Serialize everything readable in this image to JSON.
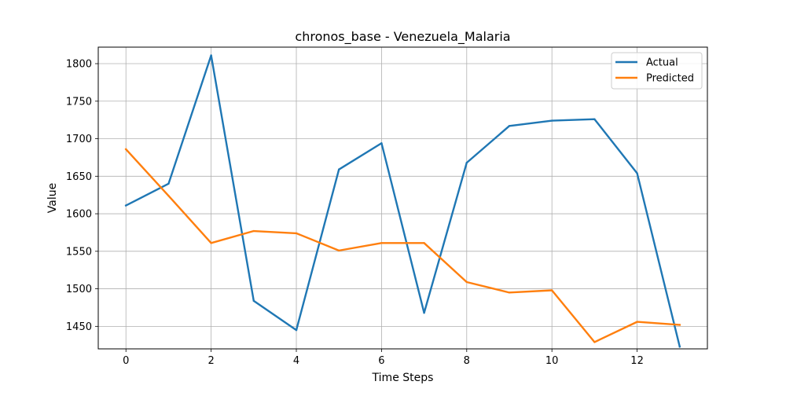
{
  "chart_data": {
    "type": "line",
    "title": "chronos_base - Venezuela_Malaria",
    "xlabel": "Time Steps",
    "ylabel": "Value",
    "x": [
      0,
      1,
      2,
      3,
      4,
      5,
      6,
      7,
      8,
      9,
      10,
      11,
      12,
      13
    ],
    "xlim": [
      -0.65,
      13.65
    ],
    "ylim": [
      1420,
      1822
    ],
    "xticks": [
      0,
      2,
      4,
      6,
      8,
      10,
      12
    ],
    "yticks": [
      1450,
      1500,
      1550,
      1600,
      1650,
      1700,
      1750,
      1800
    ],
    "grid": true,
    "legend_position": "top-right",
    "series": [
      {
        "name": "Actual",
        "color": "#1f77b4",
        "values": [
          1611,
          1640,
          1811,
          1484,
          1445,
          1659,
          1694,
          1468,
          1668,
          1717,
          1724,
          1726,
          1654,
          1423
        ]
      },
      {
        "name": "Predicted",
        "color": "#ff7f0e",
        "values": [
          1686,
          1624,
          1561,
          1577,
          1574,
          1551,
          1561,
          1561,
          1509,
          1495,
          1498,
          1429,
          1456,
          1452
        ]
      }
    ]
  }
}
